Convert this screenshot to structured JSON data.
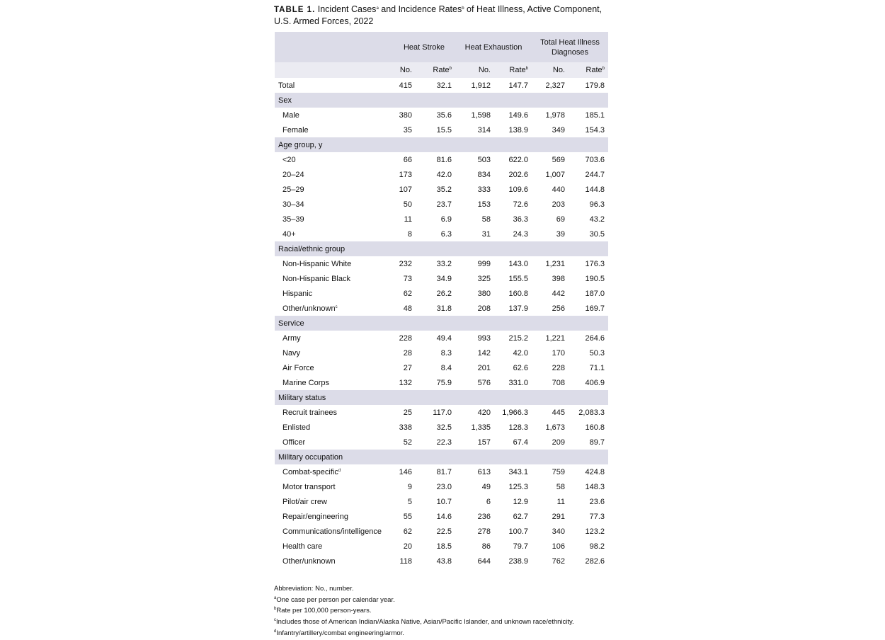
{
  "title": {
    "label": "TABLE 1.",
    "text": "Incident Cases",
    "sup_a": "a",
    "text2": " and Incidence Rates",
    "sup_b": "b",
    "text3": " of Heat Illness, Active Component, U.S. Armed Forces, 2022"
  },
  "header": {
    "groups": [
      "Heat Stroke",
      "Heat Exhaustion",
      "Total Heat Illness Diagnoses"
    ],
    "subcols": [
      {
        "label": "No.",
        "sup": ""
      },
      {
        "label": "Rate",
        "sup": "b"
      },
      {
        "label": "No.",
        "sup": ""
      },
      {
        "label": "Rate",
        "sup": "b"
      },
      {
        "label": "No.",
        "sup": ""
      },
      {
        "label": "Rate",
        "sup": "b"
      }
    ]
  },
  "rows": [
    {
      "label": "Total",
      "values": [
        "415",
        "32.1",
        "1,912",
        "147.7",
        "2,327",
        "179.8"
      ]
    },
    {
      "label": "Sex",
      "section": true
    },
    {
      "label": "Male",
      "indent": true,
      "values": [
        "380",
        "35.6",
        "1,598",
        "149.6",
        "1,978",
        "185.1"
      ]
    },
    {
      "label": "Female",
      "indent": true,
      "values": [
        "35",
        "15.5",
        "314",
        "138.9",
        "349",
        "154.3"
      ]
    },
    {
      "label": "Age group, y",
      "section": true
    },
    {
      "label": "<20",
      "indent": true,
      "values": [
        "66",
        "81.6",
        "503",
        "622.0",
        "569",
        "703.6"
      ]
    },
    {
      "label": "20–24",
      "indent": true,
      "values": [
        "173",
        "42.0",
        "834",
        "202.6",
        "1,007",
        "244.7"
      ]
    },
    {
      "label": "25–29",
      "indent": true,
      "values": [
        "107",
        "35.2",
        "333",
        "109.6",
        "440",
        "144.8"
      ]
    },
    {
      "label": "30–34",
      "indent": true,
      "values": [
        "50",
        "23.7",
        "153",
        "72.6",
        "203",
        "96.3"
      ]
    },
    {
      "label": "35–39",
      "indent": true,
      "values": [
        "11",
        "6.9",
        "58",
        "36.3",
        "69",
        "43.2"
      ]
    },
    {
      "label": "40+",
      "indent": true,
      "values": [
        "8",
        "6.3",
        "31",
        "24.3",
        "39",
        "30.5"
      ]
    },
    {
      "label": "Racial/ethnic group",
      "section": true
    },
    {
      "label": "Non-Hispanic White",
      "indent": true,
      "values": [
        "232",
        "33.2",
        "999",
        "143.0",
        "1,231",
        "176.3"
      ]
    },
    {
      "label": "Non-Hispanic Black",
      "indent": true,
      "values": [
        "73",
        "34.9",
        "325",
        "155.5",
        "398",
        "190.5"
      ]
    },
    {
      "label": "Hispanic",
      "indent": true,
      "values": [
        "62",
        "26.2",
        "380",
        "160.8",
        "442",
        "187.0"
      ]
    },
    {
      "label": "Other/unknown",
      "sup": "c",
      "indent": true,
      "values": [
        "48",
        "31.8",
        "208",
        "137.9",
        "256",
        "169.7"
      ]
    },
    {
      "label": "Service",
      "section": true
    },
    {
      "label": "Army",
      "indent": true,
      "values": [
        "228",
        "49.4",
        "993",
        "215.2",
        "1,221",
        "264.6"
      ]
    },
    {
      "label": "Navy",
      "indent": true,
      "values": [
        "28",
        "8.3",
        "142",
        "42.0",
        "170",
        "50.3"
      ]
    },
    {
      "label": "Air Force",
      "indent": true,
      "values": [
        "27",
        "8.4",
        "201",
        "62.6",
        "228",
        "71.1"
      ]
    },
    {
      "label": "Marine Corps",
      "indent": true,
      "values": [
        "132",
        "75.9",
        "576",
        "331.0",
        "708",
        "406.9"
      ]
    },
    {
      "label": "Military status",
      "section": true
    },
    {
      "label": "Recruit trainees",
      "indent": true,
      "values": [
        "25",
        "117.0",
        "420",
        "1,966.3",
        "445",
        "2,083.3"
      ]
    },
    {
      "label": "Enlisted",
      "indent": true,
      "values": [
        "338",
        "32.5",
        "1,335",
        "128.3",
        "1,673",
        "160.8"
      ]
    },
    {
      "label": "Officer",
      "indent": true,
      "values": [
        "52",
        "22.3",
        "157",
        "67.4",
        "209",
        "89.7"
      ]
    },
    {
      "label": "Military occupation",
      "section": true
    },
    {
      "label": "Combat-specific",
      "sup": "d",
      "indent": true,
      "values": [
        "146",
        "81.7",
        "613",
        "343.1",
        "759",
        "424.8"
      ]
    },
    {
      "label": "Motor transport",
      "indent": true,
      "values": [
        "9",
        "23.0",
        "49",
        "125.3",
        "58",
        "148.3"
      ]
    },
    {
      "label": "Pilot/air crew",
      "indent": true,
      "values": [
        "5",
        "10.7",
        "6",
        "12.9",
        "11",
        "23.6"
      ]
    },
    {
      "label": "Repair/engineering",
      "indent": true,
      "values": [
        "55",
        "14.6",
        "236",
        "62.7",
        "291",
        "77.3"
      ]
    },
    {
      "label": "Communications/intelligence",
      "indent": true,
      "values": [
        "62",
        "22.5",
        "278",
        "100.7",
        "340",
        "123.2"
      ]
    },
    {
      "label": "Health care",
      "indent": true,
      "values": [
        "20",
        "18.5",
        "86",
        "79.7",
        "106",
        "98.2"
      ]
    },
    {
      "label": "Other/unknown",
      "indent": true,
      "values": [
        "118",
        "43.8",
        "644",
        "238.9",
        "762",
        "282.6"
      ]
    }
  ],
  "notes": [
    {
      "sup": "",
      "text": "Abbreviation: No., number."
    },
    {
      "sup": "a",
      "text": "One case per person per calendar year."
    },
    {
      "sup": "b",
      "text": "Rate per 100,000 person-years."
    },
    {
      "sup": "c",
      "text": "Includes those of American Indian/Alaska Native, Asian/Pacific Islander, and unknown race/ethnicity."
    },
    {
      "sup": "d",
      "text": "Infantry/artillery/combat engineering/armor."
    }
  ],
  "colors": {
    "header_bg": "#dcdce8",
    "subheader_bg": "#ebebf2",
    "section_bg": "#dcdce8"
  }
}
